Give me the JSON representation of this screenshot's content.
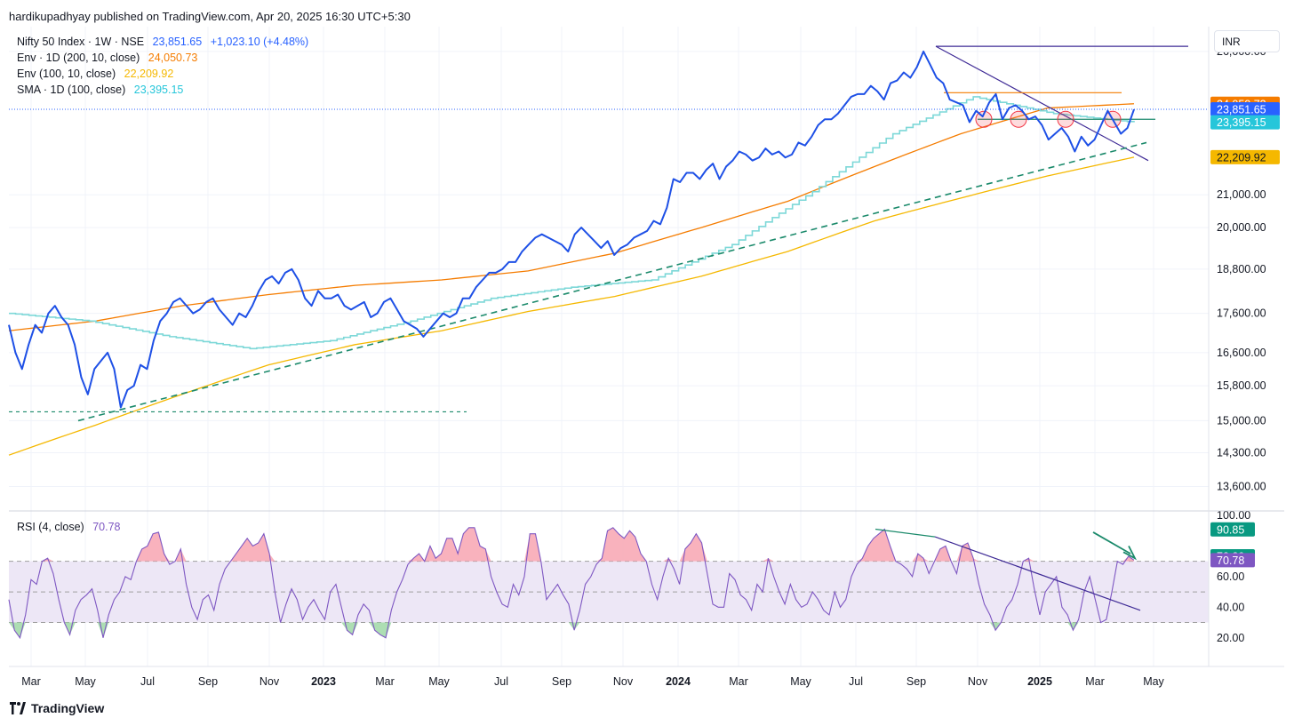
{
  "header": {
    "publisher_text": "hardikupadhyay published on TradingView.com, Apr 20, 2025 16:30 UTC+5:30"
  },
  "currency_label": "INR",
  "footer": {
    "brand": "TradingView"
  },
  "legend": [
    {
      "label": "Nifty 50 Index · 1W · NSE",
      "value": "23,851.65",
      "change": "+1,023.10 (+4.48%)",
      "color": "#2962ff"
    },
    {
      "label": "Env · 1D (200, 10, close)",
      "value": "24,050.73",
      "color": "#f57c00"
    },
    {
      "label": "Env (100, 10, close)",
      "value": "22,209.92",
      "color": "#f5b800"
    },
    {
      "label": "SMA · 1D (100, close)",
      "value": "23,395.15",
      "color": "#26c6da"
    }
  ],
  "rsi_legend": {
    "label": "RSI (4, close)",
    "value": "70.78",
    "color": "#7e57c2"
  },
  "colors": {
    "price": "#1e50e6",
    "env200": "#f57c00",
    "env100": "#f5b800",
    "sma": "#7dd8d8",
    "rsi": "#7e57c2",
    "trend": "#3f2b96",
    "support": "#1b8a6b",
    "overbought_fill": "#f8a5b2",
    "oversold_fill": "#9fd8a6",
    "rsi_band": "#ede7f6"
  },
  "chart_data": [
    {
      "type": "line",
      "title": "Nifty 50 Index · 1W · NSE",
      "x_tick_labels": [
        "Mar",
        "May",
        "Jul",
        "Sep",
        "Nov",
        "2023",
        "Mar",
        "May",
        "Jul",
        "Sep",
        "Nov",
        "2024",
        "Mar",
        "May",
        "Jul",
        "Sep",
        "Nov",
        "2025",
        "Mar",
        "May"
      ],
      "y_tick_labels": [
        "26,000.00",
        "21,000.00",
        "20,000.00",
        "18,800.00",
        "17,600.00",
        "16,600.00",
        "15,800.00",
        "15,000.00",
        "14,300.00",
        "13,600.00"
      ],
      "yscale": "log",
      "ylim": [
        13200,
        26800
      ],
      "price_labels": [
        {
          "value": "24,050.73",
          "color": "#f57c00"
        },
        {
          "value": "23,851.65",
          "color": "#2962ff"
        },
        {
          "value": "23,395.15",
          "color": "#26c6da"
        },
        {
          "value": "22,209.92",
          "color": "#f5b800"
        }
      ],
      "series": [
        {
          "name": "Nifty 50 Index",
          "values": [
            17300,
            16600,
            16200,
            16800,
            17300,
            17100,
            17600,
            17800,
            17500,
            17300,
            16800,
            16000,
            15600,
            16200,
            16400,
            16600,
            16200,
            15300,
            15700,
            15800,
            16300,
            16200,
            16900,
            17400,
            17600,
            17900,
            18000,
            17800,
            17600,
            17700,
            17900,
            18000,
            17700,
            17500,
            17300,
            17600,
            17500,
            17800,
            18200,
            18500,
            18600,
            18400,
            18700,
            18800,
            18500,
            18000,
            17800,
            18200,
            18000,
            18000,
            18100,
            17800,
            17700,
            17800,
            17900,
            17500,
            17600,
            17900,
            18000,
            17700,
            17400,
            17300,
            17200,
            17000,
            17200,
            17400,
            17600,
            17500,
            17600,
            18000,
            18000,
            18300,
            18500,
            18700,
            18700,
            18800,
            19000,
            19000,
            19300,
            19500,
            19700,
            19800,
            19700,
            19600,
            19500,
            19300,
            19800,
            20000,
            19800,
            19600,
            19400,
            19600,
            19200,
            19400,
            19500,
            19700,
            19800,
            19900,
            20200,
            20100,
            20600,
            21500,
            21400,
            21700,
            21700,
            21500,
            21800,
            22000,
            21500,
            21900,
            22100,
            22400,
            22300,
            22100,
            22200,
            22500,
            22300,
            22400,
            22200,
            22300,
            22700,
            22600,
            22900,
            23300,
            23500,
            23500,
            23700,
            24000,
            24300,
            24400,
            24400,
            24700,
            24500,
            24200,
            24800,
            24900,
            25200,
            25000,
            25400,
            26000,
            25500,
            25000,
            24800,
            24200,
            24100,
            24000,
            23400,
            23800,
            23600,
            24100,
            24400,
            23500,
            23900,
            24000,
            23800,
            23500,
            23600,
            23300,
            22800,
            23000,
            23200,
            22900,
            22400,
            22900,
            22600,
            22800,
            23300,
            23800,
            23400,
            23000,
            23200,
            23851.65
          ]
        },
        {
          "name": "Env · 1D (200, 10, close)",
          "values": [
            17150,
            17400,
            17800,
            18100,
            18350,
            18500,
            18750,
            19250,
            20000,
            20800,
            21900,
            23000,
            23900,
            24050.73
          ]
        },
        {
          "name": "Env (100, 10, close)",
          "values": [
            14250,
            14900,
            15600,
            16300,
            16800,
            17150,
            17650,
            18050,
            18600,
            19300,
            20200,
            20900,
            21600,
            22209.92
          ]
        },
        {
          "name": "SMA · 1D (100, close)",
          "values": [
            17600,
            17400,
            17000,
            16700,
            16900,
            17400,
            18000,
            18300,
            18500,
            19500,
            21100,
            23000,
            24300,
            23700,
            23395.15
          ]
        }
      ],
      "annotations": [
        {
          "type": "horizontal-line",
          "label": "top",
          "y": 26200
        },
        {
          "type": "trendline",
          "from": [
            26200
          ],
          "to": [
            22100
          ]
        },
        {
          "type": "dashed-support",
          "from": [
            15000
          ],
          "to": [
            22600
          ]
        },
        {
          "type": "horizontal-dashed",
          "y": 15200
        }
      ]
    },
    {
      "type": "line",
      "title": "RSI (4, close)",
      "ylim": [
        10,
        100
      ],
      "y_tick_labels": [
        "100.00",
        "60.00",
        "40.00",
        "20.00"
      ],
      "bands": {
        "upper": 70,
        "middle": 50,
        "lower": 30
      },
      "price_labels": [
        {
          "value": "90.85",
          "color": "#089981"
        },
        {
          "value": "73.29",
          "color": "#089981"
        },
        {
          "value": "70.78",
          "color": "#7e57c2"
        }
      ],
      "series": [
        {
          "name": "RSI (4, close)",
          "values": [
            45,
            25,
            20,
            35,
            58,
            55,
            70,
            72,
            62,
            45,
            30,
            22,
            38,
            45,
            48,
            52,
            38,
            20,
            35,
            45,
            50,
            60,
            58,
            70,
            78,
            80,
            88,
            89,
            75,
            68,
            70,
            78,
            55,
            40,
            32,
            45,
            48,
            38,
            55,
            65,
            70,
            75,
            80,
            85,
            80,
            82,
            88,
            75,
            50,
            30,
            42,
            52,
            45,
            32,
            40,
            45,
            38,
            32,
            50,
            55,
            40,
            25,
            22,
            35,
            42,
            38,
            25,
            22,
            20,
            38,
            50,
            58,
            68,
            72,
            75,
            70,
            80,
            72,
            75,
            85,
            85,
            75,
            88,
            92,
            92,
            80,
            78,
            60,
            50,
            42,
            40,
            55,
            48,
            60,
            88,
            88,
            70,
            45,
            50,
            55,
            48,
            42,
            25,
            38,
            55,
            60,
            68,
            72,
            90,
            92,
            88,
            85,
            90,
            86,
            75,
            70,
            55,
            45,
            60,
            72,
            65,
            55,
            78,
            82,
            88,
            82,
            62,
            42,
            40,
            40,
            62,
            58,
            48,
            45,
            38,
            55,
            50,
            72,
            60,
            50,
            42,
            55,
            45,
            40,
            42,
            50,
            45,
            38,
            35,
            50,
            40,
            45,
            60,
            68,
            72,
            80,
            85,
            88,
            91,
            80,
            70,
            68,
            65,
            60,
            75,
            72,
            62,
            70,
            78,
            80,
            70,
            62,
            80,
            82,
            72,
            55,
            42,
            35,
            25,
            30,
            40,
            45,
            55,
            70,
            72,
            52,
            35,
            50,
            55,
            60,
            40,
            35,
            25,
            32,
            50,
            60,
            45,
            30,
            32,
            50,
            70,
            68,
            73.29,
            70.78
          ]
        }
      ]
    }
  ]
}
